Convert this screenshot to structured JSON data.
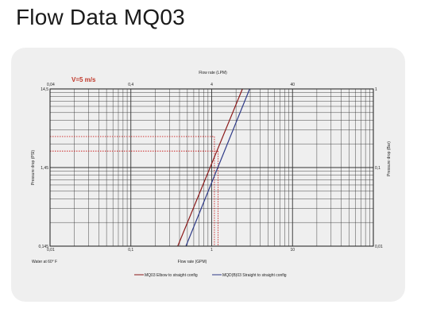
{
  "page": {
    "title": "Flow Data MQ03"
  },
  "chart_data": {
    "type": "line",
    "scale": "log-log",
    "grid": true,
    "annotation": "V=5 m/s",
    "x_bottom": {
      "label": "Flow rate (GPM)",
      "range": [
        0.01,
        100
      ],
      "ticks": [
        "0,01",
        "0,1",
        "1",
        "10"
      ]
    },
    "x_top": {
      "label": "Flow rate (LPM)",
      "range": [
        0.04,
        400
      ],
      "ticks": [
        "0,04",
        "0,4",
        "4",
        "40"
      ]
    },
    "y_left": {
      "label": "Pressure drop (PSI)",
      "range": [
        0.145,
        14.5
      ],
      "ticks": [
        "0,145",
        "1,45",
        "14,5"
      ]
    },
    "y_right": {
      "label": "Pressure drop (Bar)",
      "range": [
        0.01,
        1
      ],
      "ticks": [
        "0,01",
        "0,1",
        "1"
      ]
    },
    "footnote": "Water at 60° F",
    "colors": {
      "series1": "#8b1a1a",
      "series2": "#2e3a87",
      "guide": "#cc2222",
      "grid": "#333333"
    },
    "series": [
      {
        "name": "MQ03 Elbow to straight config",
        "color": "#8b1a1a",
        "x": [
          0.38,
          2.4
        ],
        "y": [
          0.145,
          14.5
        ]
      },
      {
        "name": "MQD(B)03 Straight to straight config",
        "color": "#2e3a87",
        "x": [
          0.48,
          2.95
        ],
        "y": [
          0.145,
          14.5
        ]
      }
    ],
    "guides": [
      {
        "series": "MQ03 Elbow to straight config",
        "x": 1.08,
        "y": 3.6
      },
      {
        "series": "MQD(B)03 Straight to straight config",
        "x": 1.2,
        "y": 2.35
      }
    ],
    "legend_position": "bottom-center"
  }
}
